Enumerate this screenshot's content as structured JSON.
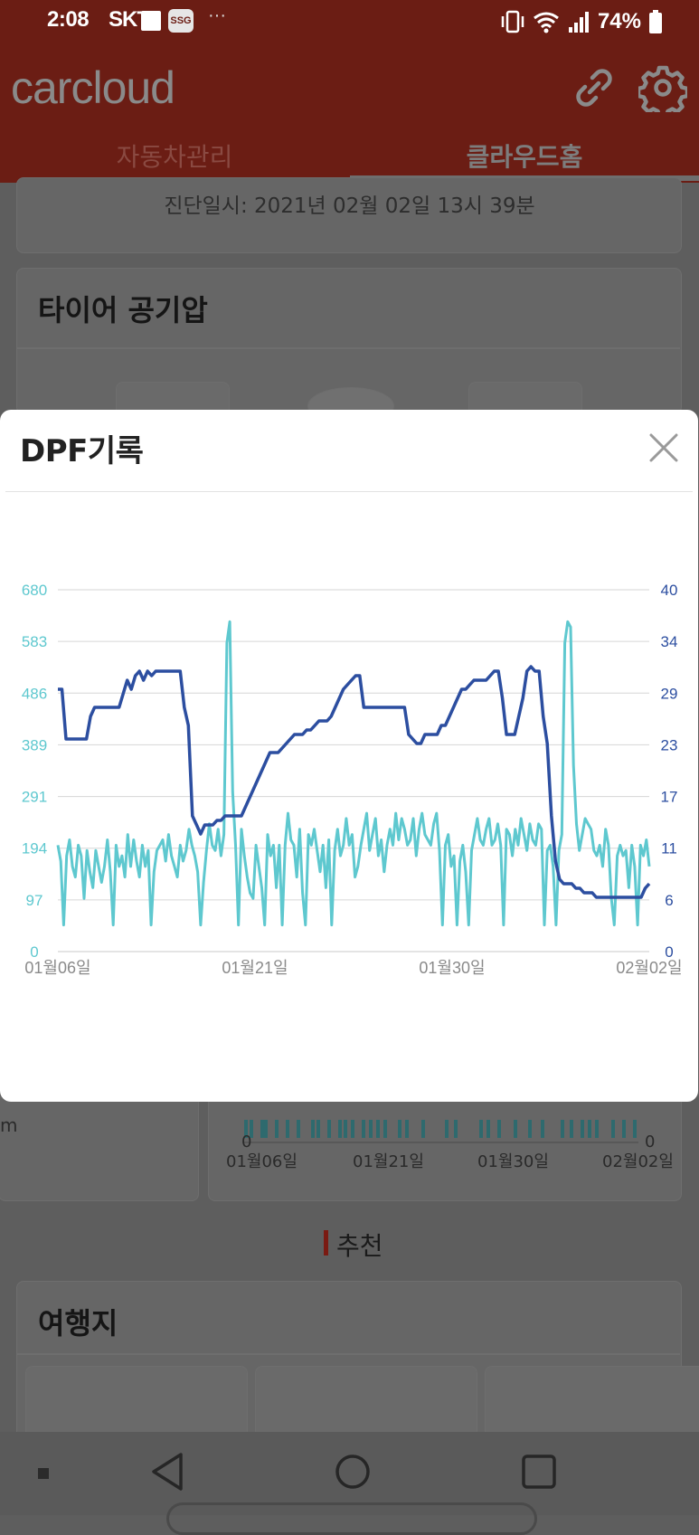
{
  "status_bar": {
    "time": "2:08",
    "carrier": "SKT",
    "ssg_badge": "SSG",
    "overflow": "···",
    "battery_percent": "74%",
    "icons": [
      "note-icon",
      "vibrate-icon",
      "wifi-icon",
      "signal-icon",
      "battery-icon"
    ]
  },
  "app_bar": {
    "logo": "carcloud",
    "icons": [
      "link-icon",
      "gear-icon"
    ],
    "tabs": [
      {
        "label": "자동차관리",
        "active": false
      },
      {
        "label": "클라우드홈",
        "active": true
      }
    ]
  },
  "background": {
    "diagnosis_date": "진단일시: 2021년 02월 02일 13시 39분",
    "tire_title": "타이어 공기압",
    "mini_chart": {
      "left_zero": "0",
      "right_zero": "0",
      "x_ticks": [
        "01월06일",
        "01월21일",
        "01월30일",
        "02월02일"
      ],
      "unit_fragment": "m"
    },
    "recommend_label": "추천",
    "travel_title": "여행지"
  },
  "modal": {
    "title": "DPF기록",
    "close_icon": "close-icon"
  },
  "colors": {
    "appbar": "#6b1d14",
    "series_light": "#5ec8cf",
    "series_dark": "#2c4ea0"
  },
  "chart_data": {
    "type": "line",
    "x_ticks": [
      "01월06일",
      "01월21일",
      "01월30일",
      "02월02일"
    ],
    "y_left_ticks": [
      "0",
      "97",
      "194",
      "291",
      "389",
      "486",
      "583",
      "680"
    ],
    "y_right_ticks": [
      "0",
      "6",
      "11",
      "17",
      "23",
      "29",
      "34",
      "40"
    ],
    "ylim_left": [
      0,
      680
    ],
    "ylim_right": [
      0,
      40
    ],
    "grid": true,
    "series": [
      {
        "axis": "left",
        "color": "#5ec8cf",
        "values": [
          200,
          170,
          50,
          180,
          210,
          160,
          140,
          200,
          180,
          100,
          190,
          150,
          120,
          190,
          160,
          130,
          160,
          210,
          150,
          50,
          200,
          160,
          180,
          140,
          220,
          160,
          210,
          170,
          140,
          200,
          160,
          190,
          50,
          150,
          190,
          200,
          210,
          170,
          220,
          180,
          160,
          140,
          200,
          170,
          190,
          230,
          200,
          180,
          150,
          50,
          130,
          190,
          240,
          200,
          190,
          230,
          180,
          220,
          580,
          620,
          300,
          200,
          50,
          230,
          180,
          140,
          110,
          100,
          200,
          160,
          120,
          50,
          220,
          180,
          200,
          120,
          200,
          50,
          200,
          260,
          210,
          200,
          140,
          230,
          110,
          50,
          220,
          200,
          230,
          190,
          150,
          200,
          120,
          210,
          50,
          190,
          230,
          180,
          200,
          250,
          200,
          220,
          140,
          160,
          200,
          230,
          260,
          190,
          220,
          250,
          180,
          210,
          150,
          200,
          230,
          200,
          260,
          210,
          250,
          230,
          200,
          210,
          250,
          180,
          230,
          260,
          220,
          210,
          200,
          240,
          260,
          190,
          50,
          200,
          220,
          160,
          180,
          50,
          170,
          200,
          150,
          50,
          190,
          220,
          250,
          210,
          200,
          230,
          250,
          200,
          210,
          240,
          200,
          50,
          230,
          220,
          180,
          230,
          200,
          250,
          220,
          190,
          240,
          210,
          200,
          240,
          230,
          50,
          190,
          200,
          160,
          50,
          190,
          220,
          580,
          620,
          610,
          350,
          240,
          190,
          220,
          250,
          240,
          230,
          190,
          180,
          200,
          160,
          230,
          200,
          100,
          50,
          180,
          200,
          180,
          190,
          120,
          200,
          160,
          50,
          200,
          180,
          210,
          160
        ]
      },
      {
        "axis": "right",
        "color": "#2c4ea0",
        "values": [
          29,
          29,
          23.5,
          23.5,
          23.5,
          23.5,
          23.5,
          23.5,
          26,
          27,
          27,
          27,
          27,
          27,
          27,
          27,
          28.5,
          30,
          29,
          30.5,
          31,
          30,
          31,
          30.5,
          31,
          31,
          31,
          31,
          31,
          31,
          31,
          27,
          25,
          15,
          14,
          13,
          14,
          14,
          14,
          14.5,
          14.5,
          15,
          15,
          15,
          15,
          15,
          16,
          17,
          18,
          19,
          20,
          21,
          22,
          22,
          22,
          22.5,
          23,
          23.5,
          24,
          24,
          24,
          24.5,
          24.5,
          25,
          25.5,
          25.5,
          25.5,
          26,
          27,
          28,
          29,
          29.5,
          30,
          30.5,
          30.5,
          27,
          27,
          27,
          27,
          27,
          27,
          27,
          27,
          27,
          27,
          27,
          24,
          23.5,
          23,
          23,
          24,
          24,
          24,
          24,
          25,
          25,
          26,
          27,
          28,
          29,
          29,
          29.5,
          30,
          30,
          30,
          30,
          30.5,
          31,
          31,
          28,
          24,
          24,
          24,
          26,
          28,
          31,
          31.5,
          31,
          31,
          26,
          23,
          15,
          10,
          8,
          7.5,
          7.5,
          7.5,
          7,
          7,
          6.5,
          6.5,
          6.5,
          6,
          6,
          6,
          6,
          6,
          6,
          6,
          6,
          6,
          6,
          6,
          6,
          7,
          7.5
        ]
      }
    ]
  }
}
